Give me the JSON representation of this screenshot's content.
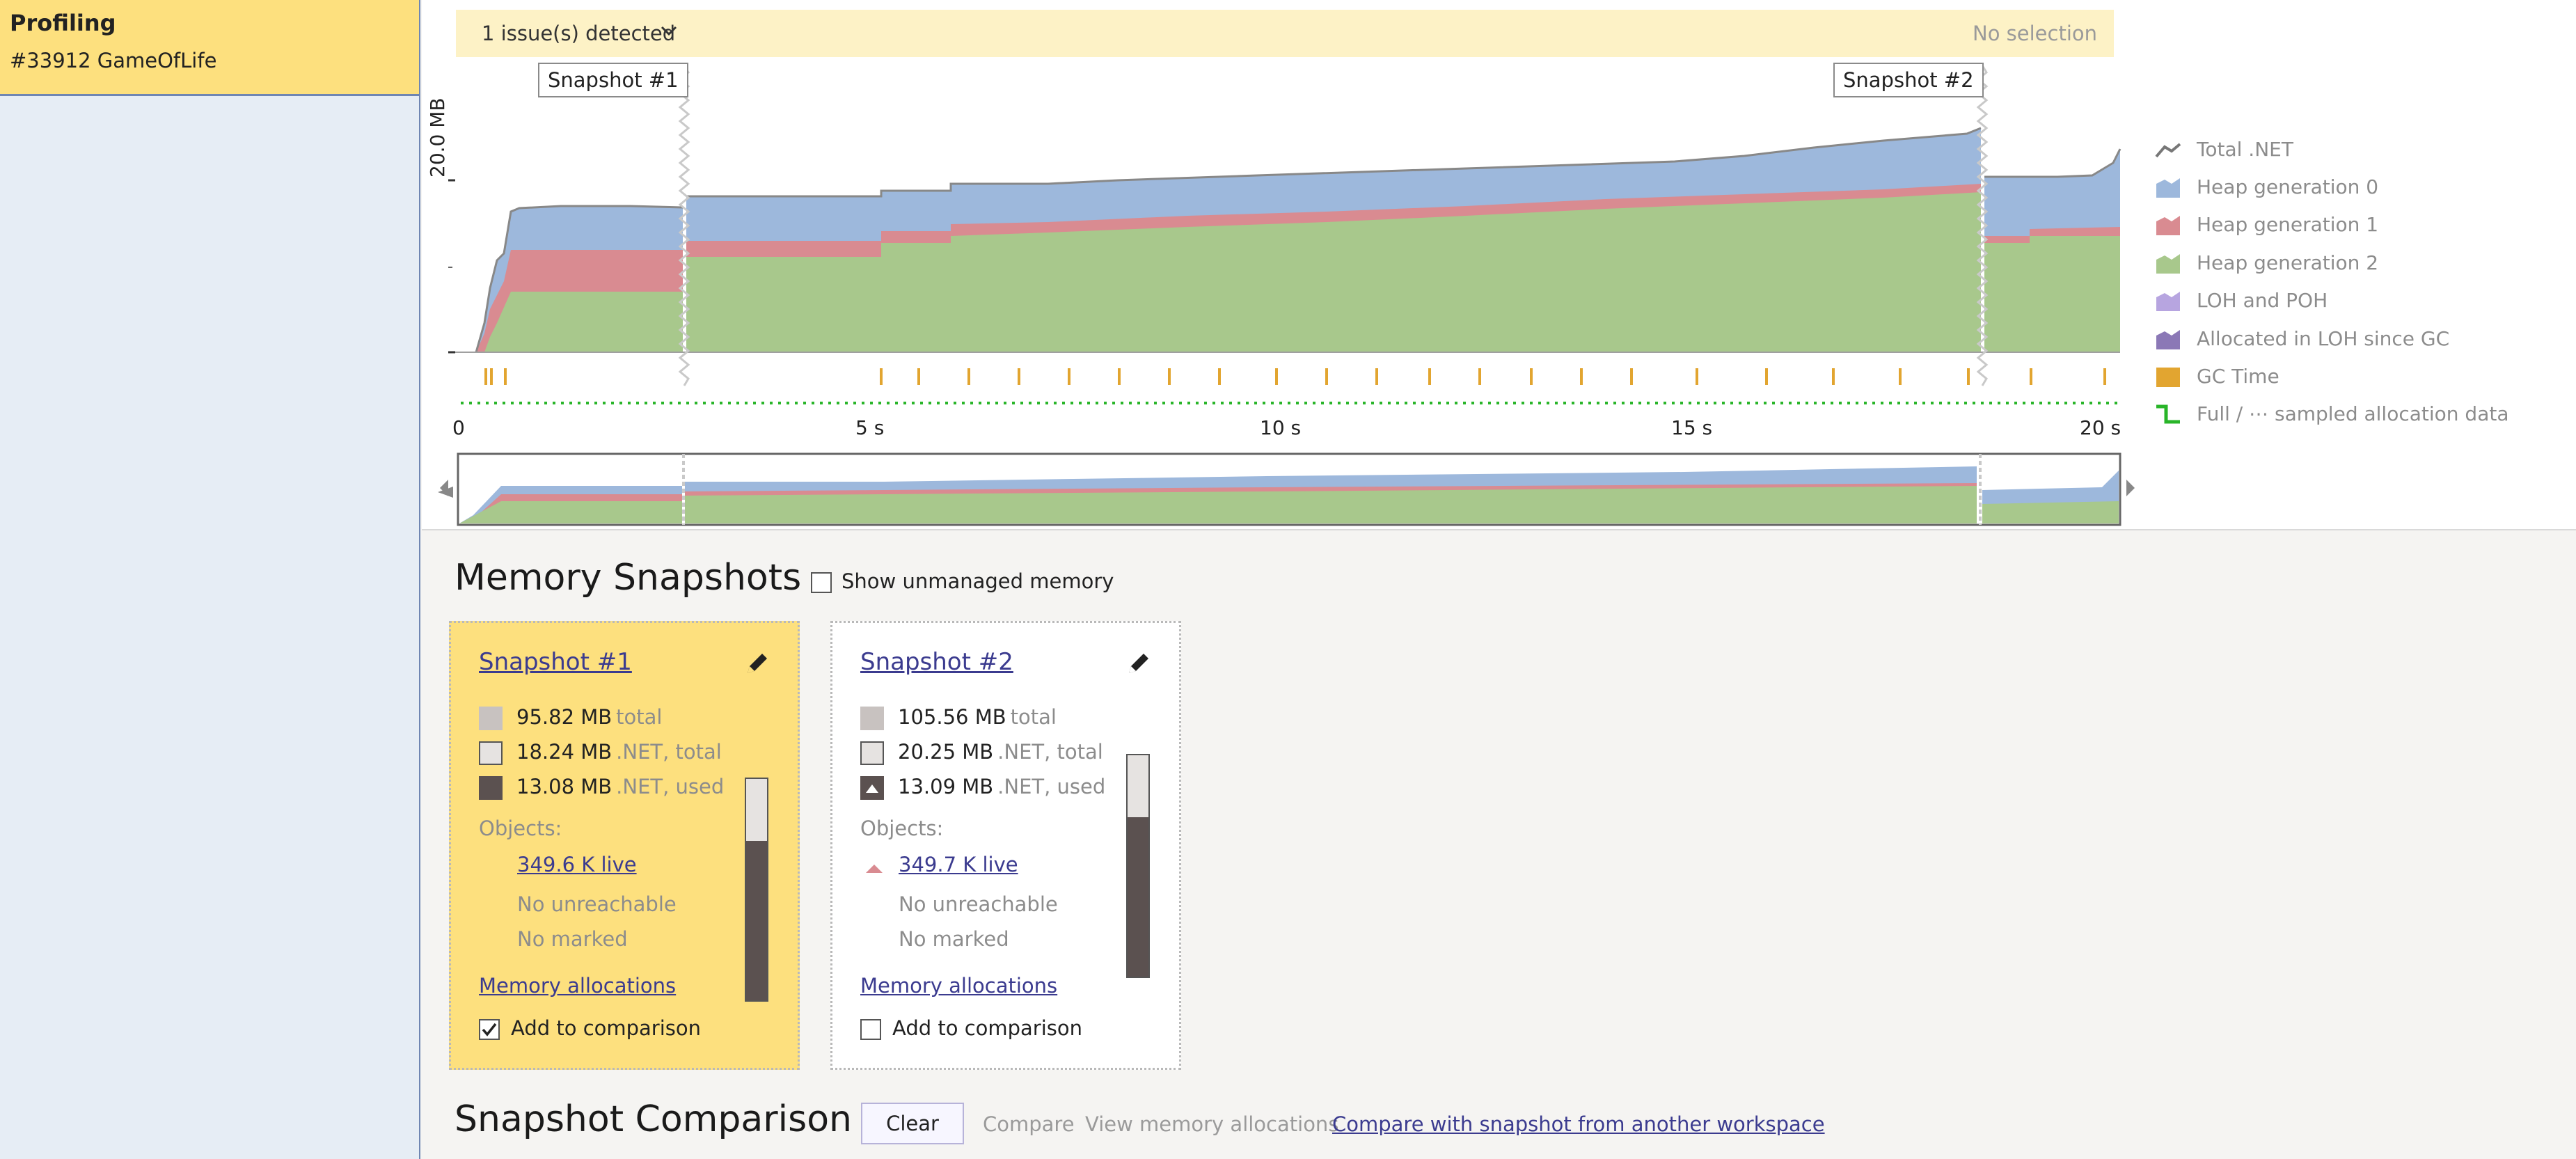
{
  "sidebar": {
    "title": "Profiling",
    "subtitle": "#33912 GameOfLife"
  },
  "timeline": {
    "issues_label": "1 issue(s) detected",
    "selection_status": "No selection",
    "snapshot_markers": [
      "Snapshot #1",
      "Snapshot #2"
    ],
    "y_axis_label": "20.0 MB",
    "x_ticks": [
      "0",
      "5 s",
      "10 s",
      "15 s",
      "20 s"
    ],
    "legend": [
      {
        "label": "Total .NET",
        "icon": "line-icon",
        "color": "#777777"
      },
      {
        "label": "Heap generation 0",
        "icon": "area-icon",
        "color": "#9db8dc"
      },
      {
        "label": "Heap generation 1",
        "icon": "area-icon",
        "color": "#d98b91"
      },
      {
        "label": "Heap generation 2",
        "icon": "area-icon",
        "color": "#a8c88c"
      },
      {
        "label": "LOH and POH",
        "icon": "area-icon",
        "color": "#b7a5e0"
      },
      {
        "label": "Allocated in LOH since GC",
        "icon": "area-icon",
        "color": "#8b78b6"
      },
      {
        "label": "GC Time",
        "icon": "square-icon",
        "color": "#e2a530"
      },
      {
        "label": "Full / ⋯ sampled allocation data",
        "icon": "step-icon",
        "color": "#29b529"
      }
    ]
  },
  "memory_snapshots": {
    "title": "Memory Snapshots",
    "show_unmanaged_label": "Show unmanaged memory",
    "show_unmanaged_checked": false,
    "snapshots": [
      {
        "title": "Snapshot #1",
        "total": "95.82 MB",
        "total_label": "total",
        "net_total": "18.24 MB",
        "net_total_label": ".NET, total",
        "net_used": "13.08 MB",
        "net_used_label": ".NET, used",
        "objects_label": "Objects:",
        "live": "349.6 K live",
        "unreachable": "No unreachable",
        "marked": "No marked",
        "allocations_link": "Memory allocations",
        "add_to_comparison": "Add to comparison",
        "in_comparison": true,
        "selected": true
      },
      {
        "title": "Snapshot #2",
        "total": "105.56 MB",
        "total_label": "total",
        "net_total": "20.25 MB",
        "net_total_label": ".NET, total",
        "net_used": "13.09 MB",
        "net_used_label": ".NET, used",
        "objects_label": "Objects:",
        "live": "349.7 K live",
        "unreachable": "No unreachable",
        "marked": "No marked",
        "allocations_link": "Memory allocations",
        "add_to_comparison": "Add to comparison",
        "in_comparison": false,
        "selected": false
      }
    ]
  },
  "snapshot_comparison": {
    "title": "Snapshot Comparison",
    "clear": "Clear",
    "compare": "Compare",
    "view_allocations": "View memory allocations",
    "compare_other": "Compare with snapshot from another workspace"
  }
}
